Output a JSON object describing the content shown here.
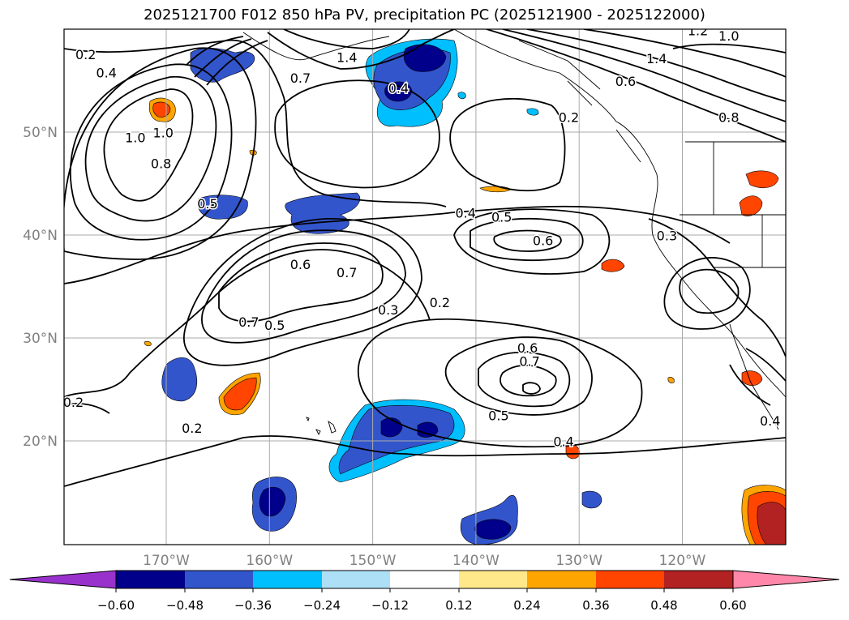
{
  "title": "2025121700 F012 850 hPa PV, precipitation PC (2025121900 - 2025122000)",
  "map": {
    "lat_ticks": [
      "50°N",
      "40°N",
      "30°N",
      "20°N"
    ],
    "lon_ticks": [
      "170°W",
      "160°W",
      "150°W",
      "140°W",
      "130°W",
      "120°W"
    ],
    "contour_labels": [
      {
        "text": "0.2",
        "lon": -177.8,
        "lat": 57.1
      },
      {
        "text": "0.4",
        "lon": -175.8,
        "lat": 55.3
      },
      {
        "text": "1.0",
        "lon": -170.3,
        "lat": 49.5
      },
      {
        "text": "0.8",
        "lon": -170.5,
        "lat": 46.5
      },
      {
        "text": "1.0",
        "lon": -173.0,
        "lat": 49.0
      },
      {
        "text": "0.5",
        "lon": -166.0,
        "lat": 42.6
      },
      {
        "text": "0.4",
        "lon": -147.5,
        "lat": 53.8
      },
      {
        "text": "0.7",
        "lon": -157.0,
        "lat": 54.8
      },
      {
        "text": "1.4",
        "lon": -152.5,
        "lat": 56.8
      },
      {
        "text": "0.2",
        "lon": -131.0,
        "lat": 51.0
      },
      {
        "text": "0.6",
        "lon": -125.5,
        "lat": 54.5
      },
      {
        "text": "1.2",
        "lon": -118.5,
        "lat": 59.4
      },
      {
        "text": "1.0",
        "lon": -115.5,
        "lat": 58.9
      },
      {
        "text": "1.4",
        "lon": -122.5,
        "lat": 56.7
      },
      {
        "text": "0.8",
        "lon": -115.5,
        "lat": 51.0
      },
      {
        "text": "0.4",
        "lon": -141.0,
        "lat": 41.7
      },
      {
        "text": "0.5",
        "lon": -137.5,
        "lat": 41.3
      },
      {
        "text": "0.6",
        "lon": -133.5,
        "lat": 39.0
      },
      {
        "text": "0.3",
        "lon": -121.5,
        "lat": 39.5
      },
      {
        "text": "0.6",
        "lon": -157.0,
        "lat": 36.7
      },
      {
        "text": "0.7",
        "lon": -152.5,
        "lat": 35.9
      },
      {
        "text": "0.7",
        "lon": -162.0,
        "lat": 31.1
      },
      {
        "text": "0.5",
        "lon": -159.5,
        "lat": 30.8
      },
      {
        "text": "0.3",
        "lon": -148.5,
        "lat": 32.3
      },
      {
        "text": "0.2",
        "lon": -143.5,
        "lat": 33.0
      },
      {
        "text": "0.6",
        "lon": -135.0,
        "lat": 28.6
      },
      {
        "text": "0.7",
        "lon": -134.8,
        "lat": 27.3
      },
      {
        "text": "0.5",
        "lon": -137.8,
        "lat": 22.0
      },
      {
        "text": "0.4",
        "lon": -131.5,
        "lat": 19.5
      },
      {
        "text": "0.2",
        "lon": -179.0,
        "lat": 23.3
      },
      {
        "text": "0.2",
        "lon": -167.5,
        "lat": 20.8
      },
      {
        "text": "0.4",
        "lon": -111.5,
        "lat": 21.5
      }
    ]
  },
  "colorbar": {
    "ticks": [
      "−0.60",
      "−0.48",
      "−0.36",
      "−0.24",
      "−0.12",
      "0.12",
      "0.24",
      "0.36",
      "0.48",
      "0.60"
    ],
    "colors": [
      "#9932CC",
      "#00008B",
      "#3355CC",
      "#00BFFF",
      "#ADE0F7",
      "#FFFFFF",
      "#FFE88A",
      "#FFA500",
      "#FF4500",
      "#B22222",
      "#FF88AA"
    ]
  }
}
